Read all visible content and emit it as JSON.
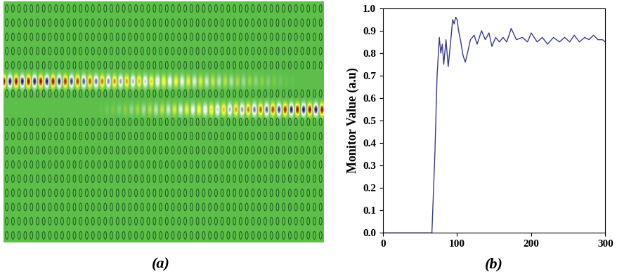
{
  "panel_labels": [
    "(a)",
    "(b)"
  ],
  "chart_data": {
    "type": "line",
    "ylabel": "Monitor Value (a.u)",
    "color": "#3a3a8c",
    "x": [
      0,
      66,
      70,
      73,
      76,
      78,
      80,
      82,
      85,
      88,
      91,
      94,
      96,
      98,
      100,
      102,
      105,
      108,
      111,
      114,
      118,
      123,
      127,
      133,
      138,
      143,
      147,
      152,
      157,
      162,
      167,
      173,
      180,
      188,
      195,
      200,
      208,
      215,
      222,
      230,
      238,
      245,
      252,
      258,
      265,
      272,
      278,
      284,
      290,
      296,
      300
    ],
    "values": [
      0.0,
      0.0,
      0.35,
      0.7,
      0.87,
      0.8,
      0.84,
      0.75,
      0.86,
      0.74,
      0.84,
      0.95,
      0.93,
      0.96,
      0.95,
      0.9,
      0.85,
      0.79,
      0.76,
      0.8,
      0.86,
      0.88,
      0.84,
      0.9,
      0.86,
      0.89,
      0.83,
      0.87,
      0.85,
      0.87,
      0.85,
      0.91,
      0.86,
      0.87,
      0.85,
      0.89,
      0.85,
      0.87,
      0.84,
      0.87,
      0.85,
      0.87,
      0.85,
      0.88,
      0.85,
      0.87,
      0.86,
      0.88,
      0.86,
      0.86,
      0.85
    ],
    "xlim": [
      0,
      300
    ],
    "ylim": [
      0.0,
      1.0
    ],
    "xticks": [
      0,
      100,
      200,
      300
    ],
    "yticks": [
      {
        "value": 0.0,
        "label": "0.0"
      },
      {
        "value": 0.1,
        "label": "0.1"
      },
      {
        "value": 0.2,
        "label": "0.2"
      },
      {
        "value": 0.3,
        "label": "0.3"
      },
      {
        "value": 0.4,
        "label": "0.4"
      },
      {
        "value": 0.5,
        "label": "0.5"
      },
      {
        "value": 0.6,
        "label": "0.6"
      },
      {
        "value": 0.7,
        "label": "0.7"
      },
      {
        "value": 0.8,
        "label": "0.8"
      },
      {
        "value": 0.9,
        "label": "0.9"
      },
      {
        "value": 1.0,
        "label": "1.0"
      }
    ]
  }
}
